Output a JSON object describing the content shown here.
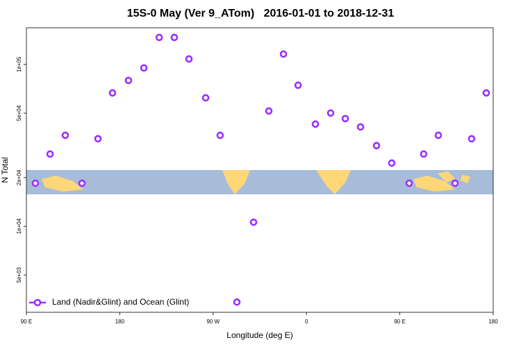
{
  "chart_data": {
    "type": "scatter",
    "title": "15S-0 May (Ver 9_ATom)   2016-01-01 to 2018-12-31",
    "x_label": "Longitude (deg E)",
    "y_label": "N Total",
    "log_y": true,
    "xlim": [
      90,
      540
    ],
    "ylim": [
      2940,
      168600
    ],
    "xticks": [
      {
        "value": 90,
        "label": "90 E"
      },
      180,
      {
        "value": 270,
        "label": "90 W"
      },
      {
        "value": 360,
        "label": "0"
      },
      {
        "value": 450,
        "label": "90 E"
      },
      {
        "value": 540,
        "label": "180"
      }
    ],
    "yticks": [
      {
        "value": 5000,
        "label": "5e+03"
      },
      {
        "value": 10000,
        "label": "1e+04"
      },
      {
        "value": 20000,
        "label": "2e+04"
      },
      {
        "value": 50000,
        "label": "5e+04"
      },
      {
        "value": 100000,
        "label": "1e+05"
      }
    ],
    "legend": "bottom-left",
    "series": [
      {
        "name": "Land (Nadir&Glint) and Ocean (Glint)",
        "color": "#9b30ff",
        "x": [
          98.7,
          112.8,
          127.5,
          143.6,
          159,
          173,
          188.4,
          203.2,
          218,
          232.6,
          246.7,
          262.8,
          276.8,
          292.9,
          309,
          323.7,
          337.8,
          351.9,
          368.6,
          383.3,
          397.4,
          412.1,
          427.5,
          442.2,
          459,
          473,
          487.1,
          503.2,
          519.2,
          533.3
        ],
        "values": [
          18450,
          27950,
          36500,
          18450,
          34750,
          66700,
          79700,
          95200,
          146900,
          146900,
          108200,
          62200,
          36500,
          3400,
          10600,
          51600,
          116000,
          74400,
          42800,
          50100,
          46300,
          41100,
          31500,
          24600,
          18450,
          27950,
          36500,
          18450,
          34750,
          66700
        ]
      }
    ]
  }
}
